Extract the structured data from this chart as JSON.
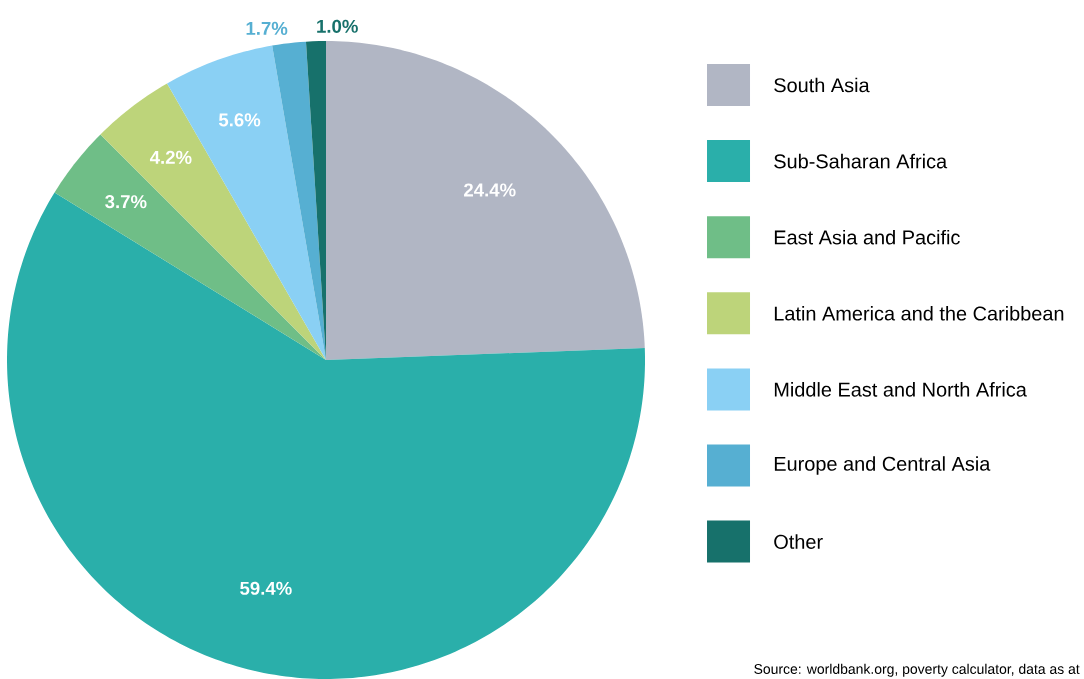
{
  "chart_data": {
    "type": "pie",
    "categories": [
      "South Asia",
      "Sub-Saharan Africa",
      "East Asia and Pacific",
      "Latin America and the Caribbean",
      "Middle East and North Africa",
      "Europe and Central Asia",
      "Other"
    ],
    "values": [
      24.4,
      59.4,
      3.7,
      4.2,
      5.6,
      1.7,
      1.0
    ],
    "colors": [
      "#b1b6c4",
      "#2aafaa",
      "#6fbe87",
      "#bdd47a",
      "#8ad0f4",
      "#56afd2",
      "#17716b"
    ],
    "value_labels": [
      "24.4%",
      "59.4%",
      "3.7%",
      "4.2%",
      "5.6%",
      "1.7%",
      "1.0%"
    ],
    "legend": "right",
    "annotations": [
      "Source: worldbank.org, poverty calculator, data as at"
    ]
  }
}
